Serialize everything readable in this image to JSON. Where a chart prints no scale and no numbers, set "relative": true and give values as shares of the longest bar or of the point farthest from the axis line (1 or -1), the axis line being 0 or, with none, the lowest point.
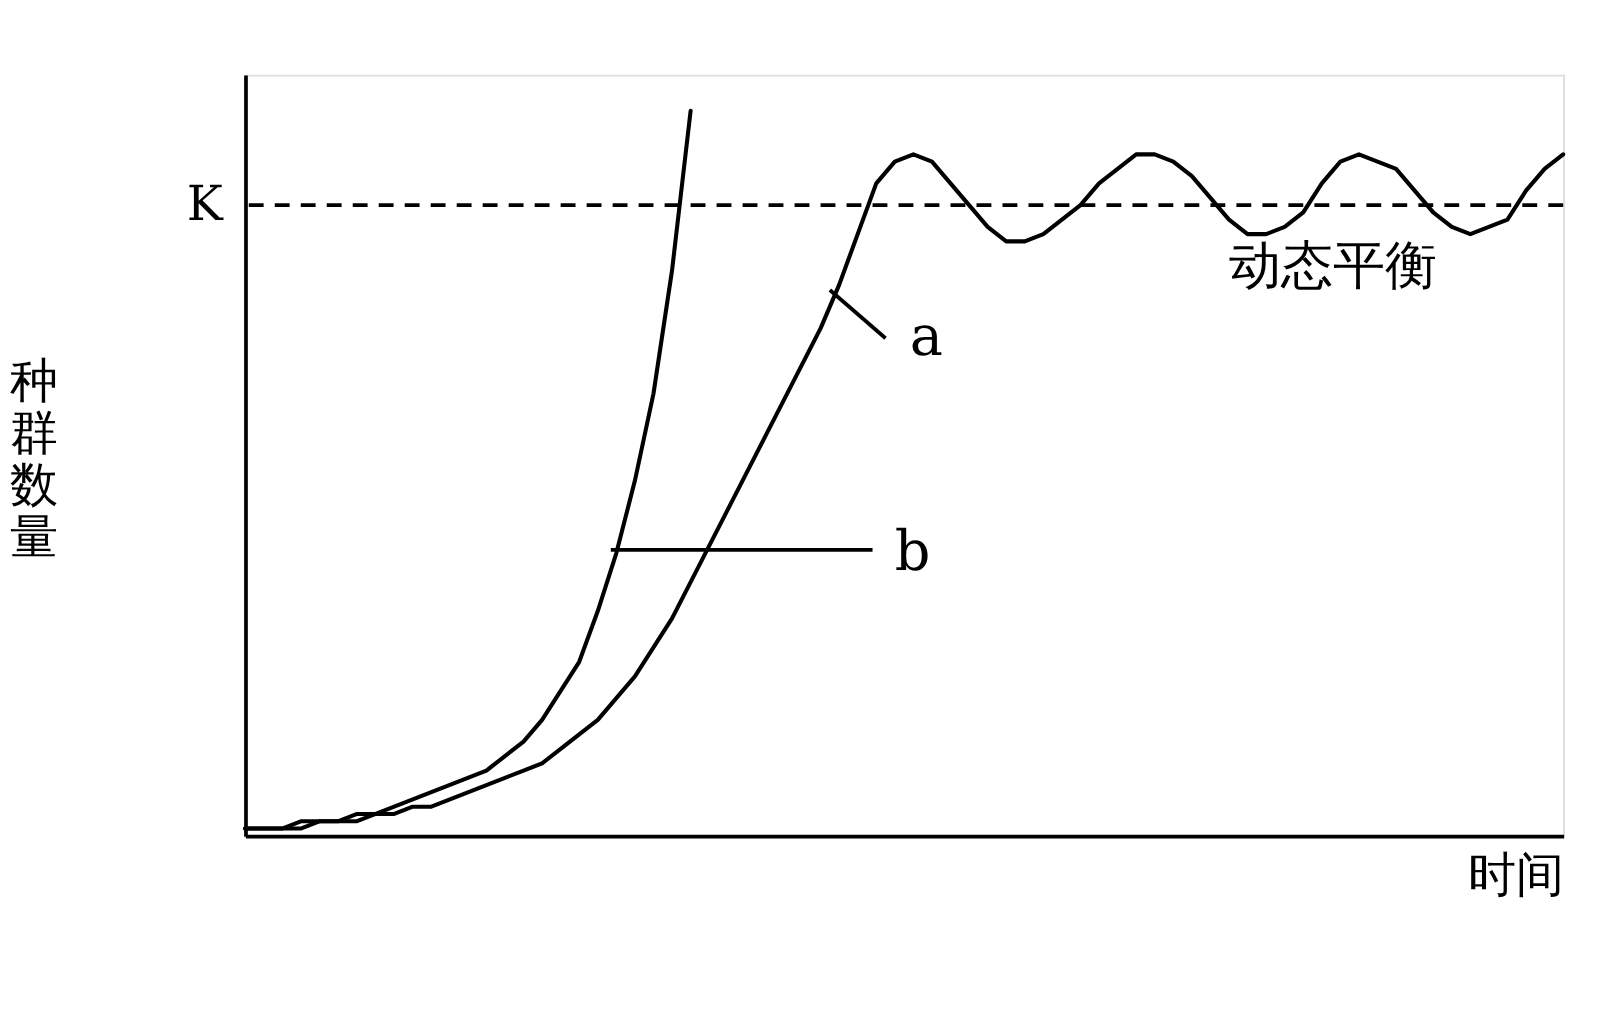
{
  "chart_data": {
    "type": "line",
    "relative": true,
    "xlabel": "时间",
    "ylabel": "种群数量",
    "grid": false,
    "marker": "none",
    "line_style": "solid",
    "tick_labels": false,
    "categories": [
      null,
      null,
      null,
      null,
      null,
      null,
      null,
      null,
      null,
      null,
      null,
      null,
      null,
      null,
      null,
      null,
      null,
      null,
      null,
      null,
      null,
      null,
      null,
      null,
      null,
      null,
      null,
      null,
      null,
      null,
      null,
      null,
      null,
      null,
      null,
      null,
      null,
      null,
      null,
      null,
      null,
      null,
      null,
      null,
      null,
      null,
      null,
      null,
      null,
      null,
      null,
      null,
      null,
      null,
      null,
      null,
      null,
      null,
      null,
      null,
      null,
      null,
      null,
      null,
      null,
      null,
      null,
      null,
      null,
      null,
      null,
      null
    ],
    "series": [
      {
        "color": "#000000",
        "values": [
          0.01,
          0.01,
          0.01,
          0.02,
          0.02,
          0.02,
          0.03,
          0.03,
          0.04,
          0.05,
          0.06,
          0.07,
          0.08,
          0.09,
          0.11,
          0.13,
          0.16,
          0.2,
          0.24,
          0.31,
          0.39,
          0.49,
          0.61,
          0.78,
          1.0,
          null,
          null,
          null,
          null,
          null,
          null,
          null,
          null,
          null,
          null,
          null,
          null,
          null,
          null,
          null,
          null,
          null,
          null,
          null,
          null,
          null,
          null,
          null,
          null,
          null,
          null,
          null,
          null,
          null,
          null,
          null,
          null,
          null,
          null,
          null,
          null,
          null,
          null,
          null,
          null,
          null,
          null,
          null,
          null,
          null,
          null,
          null
        ]
      },
      {
        "color": "#000000",
        "values": [
          0.01,
          0.01,
          0.01,
          0.01,
          0.02,
          0.02,
          0.02,
          0.03,
          0.03,
          0.04,
          0.04,
          0.05,
          0.06,
          0.07,
          0.08,
          0.09,
          0.1,
          0.12,
          0.14,
          0.16,
          0.19,
          0.22,
          0.26,
          0.3,
          0.35,
          0.4,
          0.45,
          0.5,
          0.55,
          0.6,
          0.65,
          0.7,
          0.76,
          0.83,
          0.9,
          0.93,
          0.94,
          0.93,
          0.9,
          0.87,
          0.84,
          0.82,
          0.82,
          0.83,
          0.85,
          0.87,
          0.9,
          0.92,
          0.94,
          0.94,
          0.93,
          0.91,
          0.88,
          0.85,
          0.83,
          0.83,
          0.84,
          0.86,
          0.9,
          0.93,
          0.94,
          0.93,
          0.92,
          0.89,
          0.86,
          0.84,
          0.83,
          0.84,
          0.85,
          0.89,
          0.92,
          0.94
        ]
      }
    ],
    "ref_lines": [
      {
        "axis": "y",
        "value": 0.87,
        "label": "K",
        "color": "#000000",
        "line_style": "dashed"
      }
    ],
    "annotations": [
      "a",
      "b",
      "动态平衡"
    ]
  }
}
